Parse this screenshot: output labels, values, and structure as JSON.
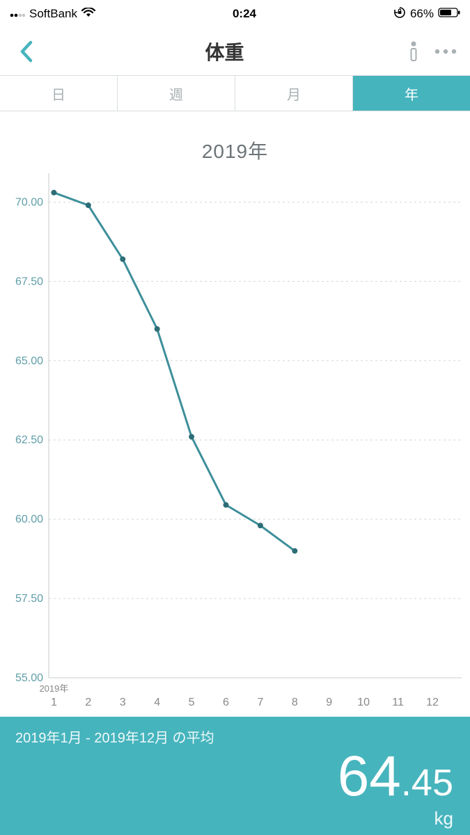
{
  "colors": {
    "accent": "#46b4bd",
    "axis_label": "#5f9ea8",
    "grid": "#d2d6d8",
    "line": "#3d8f9a",
    "marker": "#2c6d76",
    "muted_text": "#a9b0b3",
    "title_text": "#6c7478"
  },
  "status_bar": {
    "carrier": "SoftBank",
    "time": "0:24",
    "battery_pct": "66%"
  },
  "nav": {
    "title": "体重"
  },
  "segments": {
    "items": [
      "日",
      "週",
      "月",
      "年"
    ],
    "active_index": 3
  },
  "chart": {
    "type": "line",
    "title": "2019年",
    "x_year_label": "2019年",
    "x_labels": [
      "1",
      "2",
      "3",
      "4",
      "5",
      "6",
      "7",
      "8",
      "9",
      "10",
      "11",
      "12"
    ],
    "y_ticks": [
      55.0,
      57.5,
      60.0,
      62.5,
      65.0,
      67.5,
      70.0
    ],
    "y_tick_labels": [
      "55.00",
      "57.50",
      "60.00",
      "62.50",
      "65.00",
      "67.50",
      "70.00"
    ],
    "ylim": [
      55.0,
      70.8
    ],
    "values": [
      70.3,
      69.9,
      68.2,
      66.0,
      62.6,
      60.45,
      59.8,
      59.0
    ],
    "line_width": 3,
    "marker_radius": 4
  },
  "footer": {
    "label": "2019年1月 - 2019年12月 の平均",
    "value_int": "64",
    "value_dec": ".45",
    "unit": "kg"
  }
}
